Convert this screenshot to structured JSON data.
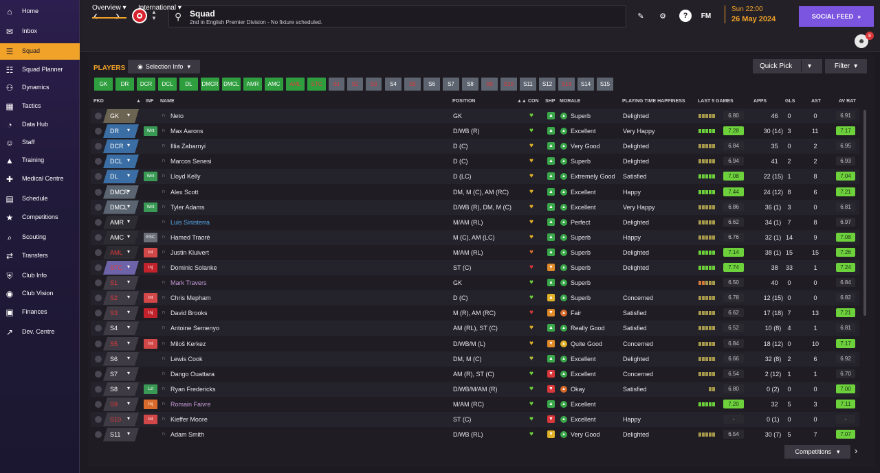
{
  "sidebar": {
    "items": [
      {
        "label": "Home",
        "icon": "home-icon"
      },
      {
        "label": "Inbox",
        "icon": "inbox-icon"
      },
      {
        "label": "Squad",
        "icon": "squad-icon",
        "active": true
      },
      {
        "label": "Squad Planner",
        "icon": "squad-planner-icon"
      },
      {
        "label": "Dynamics",
        "icon": "dynamics-icon"
      },
      {
        "label": "Tactics",
        "icon": "tactics-icon"
      },
      {
        "label": "Data Hub",
        "icon": "data-hub-icon"
      },
      {
        "label": "Staff",
        "icon": "staff-icon"
      },
      {
        "label": "Training",
        "icon": "training-icon"
      },
      {
        "label": "Medical Centre",
        "icon": "medical-icon"
      },
      {
        "label": "Schedule",
        "icon": "schedule-icon"
      },
      {
        "label": "Competitions",
        "icon": "trophy-icon"
      },
      {
        "label": "Scouting",
        "icon": "scouting-icon"
      },
      {
        "label": "Transfers",
        "icon": "transfers-icon"
      },
      {
        "label": "Club Info",
        "icon": "shield-icon"
      },
      {
        "label": "Club Vision",
        "icon": "vision-icon"
      },
      {
        "label": "Finances",
        "icon": "finances-icon"
      },
      {
        "label": "Dev. Centre",
        "icon": "dev-centre-icon"
      }
    ]
  },
  "header": {
    "title": "Squad",
    "subtitle": "2nd in English Premier Division - No fixture scheduled.",
    "time": "Sun 22:00",
    "date": "26 May 2024",
    "social_feed": "SOCIAL FEED",
    "fm_label": "FM",
    "avatar_count": "8"
  },
  "tabs": {
    "overview": "Overview",
    "international": "International"
  },
  "toolbar": {
    "players_label": "PLAYERS",
    "selection_info": "Selection Info",
    "quick_pick": "Quick Pick",
    "filter": "Filter"
  },
  "position_chips": [
    {
      "label": "GK",
      "style": "g"
    },
    {
      "label": "DR",
      "style": "g"
    },
    {
      "label": "DCR",
      "style": "g"
    },
    {
      "label": "DCL",
      "style": "g"
    },
    {
      "label": "DL",
      "style": "g"
    },
    {
      "label": "DMCR",
      "style": "g"
    },
    {
      "label": "DMCL",
      "style": "g"
    },
    {
      "label": "AMR",
      "style": "g"
    },
    {
      "label": "AMC",
      "style": "g"
    },
    {
      "label": "AML",
      "style": "ga"
    },
    {
      "label": "STC",
      "style": "ga"
    },
    {
      "label": "S1",
      "style": "ya"
    },
    {
      "label": "S2",
      "style": "ya"
    },
    {
      "label": "S3",
      "style": "ya"
    },
    {
      "label": "S4",
      "style": "y"
    },
    {
      "label": "S5",
      "style": "ya"
    },
    {
      "label": "S6",
      "style": "y"
    },
    {
      "label": "S7",
      "style": "y"
    },
    {
      "label": "S8",
      "style": "y"
    },
    {
      "label": "S9",
      "style": "ya"
    },
    {
      "label": "S10",
      "style": "ya"
    },
    {
      "label": "S11",
      "style": "y"
    },
    {
      "label": "S12",
      "style": "y"
    },
    {
      "label": "S13",
      "style": "ya"
    },
    {
      "label": "S14",
      "style": "y"
    },
    {
      "label": "S15",
      "style": "y"
    }
  ],
  "columns": {
    "pkd": "PKD",
    "inf": "INF",
    "name": "NAME",
    "position": "POSITION",
    "con": "CON",
    "shp": "SHP",
    "morale": "MORALE",
    "pth": "PLAYING TIME HAPPINESS",
    "last5": "LAST 5 GAMES",
    "apps": "APPS",
    "gls": "GLS",
    "ast": "AST",
    "avrat": "AV RAT"
  },
  "players": [
    {
      "slot": "GK",
      "slot_color": "#6b6452",
      "slot_red": false,
      "inf": "",
      "inf_type": "",
      "name": "Neto",
      "name_color": "#e8e6ec",
      "position": "GK",
      "con": "#6dd13c",
      "shp": "up",
      "morale": "Superb",
      "pth": "Delighted",
      "last5": [
        "#a89a4c",
        "#a89a4c",
        "#a89a4c",
        "#a89a4c",
        "#a89a4c"
      ],
      "l5": "6.80",
      "l5g": false,
      "apps": "46",
      "gls": "0",
      "ast": "0",
      "avrat": "6.91",
      "avg": false
    },
    {
      "slot": "DR",
      "slot_color": "#3b6ea4",
      "slot_red": false,
      "inf": "Wnt",
      "inf_type": "wnt",
      "name": "Max Aarons",
      "name_color": "#e8e6ec",
      "position": "D/WB (R)",
      "con": "#6dd13c",
      "shp": "up",
      "morale": "Excellent",
      "pth": "Very Happy",
      "last5": [
        "#6dd13c",
        "#6dd13c",
        "#6dd13c",
        "#6dd13c",
        "#6dd13c"
      ],
      "l5": "7.28",
      "l5g": true,
      "apps": "30 (14)",
      "gls": "3",
      "ast": "11",
      "avrat": "7.17",
      "avg": true
    },
    {
      "slot": "DCR",
      "slot_color": "#3b6ea4",
      "slot_red": false,
      "inf": "",
      "inf_type": "",
      "name": "Illia Zabarnyi",
      "name_color": "#e8e6ec",
      "position": "D (C)",
      "con": "#e0b128",
      "shp": "up",
      "morale": "Very Good",
      "pth": "Delighted",
      "last5": [
        "#a89a4c",
        "#a89a4c",
        "#a89a4c",
        "#a89a4c",
        "#a89a4c"
      ],
      "l5": "6.84",
      "l5g": false,
      "apps": "35",
      "gls": "0",
      "ast": "2",
      "avrat": "6.95",
      "avg": false
    },
    {
      "slot": "DCL",
      "slot_color": "#3b6ea4",
      "slot_red": false,
      "inf": "",
      "inf_type": "",
      "name": "Marcos Senesi",
      "name_color": "#e8e6ec",
      "position": "D (C)",
      "con": "#e0b128",
      "shp": "up",
      "morale": "Superb",
      "pth": "Delighted",
      "last5": [
        "#a89a4c",
        "#a89a4c",
        "#a89a4c",
        "#a89a4c",
        "#a89a4c"
      ],
      "l5": "6.94",
      "l5g": false,
      "apps": "41",
      "gls": "2",
      "ast": "2",
      "avrat": "6.93",
      "avg": false
    },
    {
      "slot": "DL",
      "slot_color": "#3b6ea4",
      "slot_red": false,
      "inf": "Wnt",
      "inf_type": "wnt",
      "name": "Lloyd Kelly",
      "name_color": "#e8e6ec",
      "position": "D (LC)",
      "con": "#e0b128",
      "shp": "up",
      "morale": "Extremely Good",
      "pth": "Satisfied",
      "last5": [
        "#6dd13c",
        "#6dd13c",
        "#6dd13c",
        "#6dd13c",
        "#6dd13c"
      ],
      "l5": "7.08",
      "l5g": true,
      "apps": "22 (15)",
      "gls": "1",
      "ast": "8",
      "avrat": "7.04",
      "avg": true
    },
    {
      "slot": "DMCR",
      "slot_color": "#5b6572",
      "slot_red": false,
      "inf": "",
      "inf_type": "",
      "name": "Alex Scott",
      "name_color": "#e8e6ec",
      "position": "DM, M (C), AM (RC)",
      "con": "#e0b128",
      "shp": "up",
      "morale": "Excellent",
      "pth": "Happy",
      "last5": [
        "#6dd13c",
        "#6dd13c",
        "#6dd13c",
        "#6dd13c",
        "#6dd13c"
      ],
      "l5": "7.44",
      "l5g": true,
      "apps": "24 (12)",
      "gls": "8",
      "ast": "6",
      "avrat": "7.21",
      "avg": true
    },
    {
      "slot": "DMCL",
      "slot_color": "#5b6572",
      "slot_red": false,
      "inf": "Wnt",
      "inf_type": "wnt",
      "name": "Tyler Adams",
      "name_color": "#e8e6ec",
      "position": "D/WB (R), DM, M (C)",
      "con": "#e0b128",
      "shp": "up",
      "morale": "Excellent",
      "pth": "Very Happy",
      "last5": [
        "#a89a4c",
        "#a89a4c",
        "#a89a4c",
        "#a89a4c",
        "#a89a4c"
      ],
      "l5": "6.86",
      "l5g": false,
      "apps": "36 (1)",
      "gls": "3",
      "ast": "0",
      "avrat": "6.81",
      "avg": false
    },
    {
      "slot": "AMR",
      "slot_color": "#2e2c33",
      "slot_red": false,
      "inf": "",
      "inf_type": "",
      "name": "Luis Sinisterra",
      "name_color": "#5aa6e8",
      "position": "M/AM (RL)",
      "con": "#e0b128",
      "shp": "upg",
      "morale": "Perfect",
      "pth": "Delighted",
      "last5": [
        "#a89a4c",
        "#a89a4c",
        "#a89a4c",
        "#a89a4c",
        "#a89a4c"
      ],
      "l5": "6.62",
      "l5g": false,
      "apps": "34 (1)",
      "gls": "7",
      "ast": "8",
      "avrat": "6.97",
      "avg": false
    },
    {
      "slot": "AMC",
      "slot_color": "#2e2c33",
      "slot_red": false,
      "inf": "ESC",
      "inf_type": "esc",
      "name": "Hamed Traorè",
      "name_color": "#e8e6ec",
      "position": "M (C), AM (LC)",
      "con": "#e0b128",
      "shp": "up",
      "morale": "Superb",
      "pth": "Happy",
      "last5": [
        "#a89a4c",
        "#a89a4c",
        "#a89a4c",
        "#a89a4c",
        "#a89a4c"
      ],
      "l5": "6.76",
      "l5g": false,
      "apps": "32 (1)",
      "gls": "14",
      "ast": "9",
      "avrat": "7.08",
      "avg": true
    },
    {
      "slot": "AML",
      "slot_color": "#2e2c33",
      "slot_red": true,
      "inf": "Int",
      "inf_type": "int",
      "name": "Justin Kluivert",
      "name_color": "#e8e6ec",
      "position": "M/AM (RL)",
      "con": "#d86b2b",
      "shp": "up",
      "morale": "Superb",
      "pth": "Delighted",
      "last5": [
        "#6dd13c",
        "#6dd13c",
        "#6dd13c",
        "#6dd13c",
        "#6dd13c"
      ],
      "l5": "7.14",
      "l5g": true,
      "apps": "38 (1)",
      "gls": "15",
      "ast": "15",
      "avrat": "7.26",
      "avg": true
    },
    {
      "slot": "STC",
      "slot_color": "#6d63a8",
      "slot_red": true,
      "inf": "Inj",
      "inf_type": "inj",
      "name": "Dominic Solanke",
      "name_color": "#e8e6ec",
      "position": "ST (C)",
      "con": "#d9373b",
      "shp": "down",
      "morale": "Superb",
      "pth": "Delighted",
      "last5": [
        "#6dd13c",
        "#6dd13c",
        "#6dd13c",
        "#6dd13c",
        "#6dd13c"
      ],
      "l5": "7.74",
      "l5g": true,
      "apps": "38",
      "gls": "33",
      "ast": "1",
      "avrat": "7.24",
      "avg": true
    },
    {
      "slot": "S1",
      "slot_color": "#3e3b44",
      "slot_red": true,
      "inf": "",
      "inf_type": "",
      "name": "Mark Travers",
      "name_color": "#c79ad8",
      "position": "GK",
      "con": "#6dd13c",
      "shp": "up",
      "morale": "Superb",
      "pth": "",
      "last5": [
        "#d17a3c",
        "#d17a3c",
        "#a89a4c",
        "#a89a4c",
        "#a89a4c"
      ],
      "l5": "6.50",
      "l5g": false,
      "apps": "40",
      "gls": "0",
      "ast": "0",
      "avrat": "6.84",
      "avg": false
    },
    {
      "slot": "S2",
      "slot_color": "#3e3b44",
      "slot_red": true,
      "inf": "Int",
      "inf_type": "int",
      "name": "Chris Mepham",
      "name_color": "#e8e6ec",
      "position": "D (C)",
      "con": "#6dd13c",
      "shp": "upy",
      "morale": "Superb",
      "pth": "Concerned",
      "last5": [
        "#a89a4c",
        "#a89a4c",
        "#a89a4c",
        "#a89a4c",
        "#a89a4c"
      ],
      "l5": "6.78",
      "l5g": false,
      "apps": "12 (15)",
      "gls": "0",
      "ast": "0",
      "avrat": "6.82",
      "avg": false
    },
    {
      "slot": "S3",
      "slot_color": "#3e3b44",
      "slot_red": true,
      "inf": "Inj",
      "inf_type": "inj",
      "name": "David Brooks",
      "name_color": "#e8e6ec",
      "position": "M (R), AM (RC)",
      "con": "#d9373b",
      "shp": "down",
      "morale": "Fair",
      "pth": "Satisfied",
      "last5": [
        "#a89a4c",
        "#a89a4c",
        "#a89a4c",
        "#a89a4c",
        "#a89a4c"
      ],
      "l5": "6.62",
      "l5g": false,
      "apps": "17 (18)",
      "gls": "7",
      "ast": "13",
      "avrat": "7.21",
      "avg": true
    },
    {
      "slot": "S4",
      "slot_color": "#3e3b44",
      "slot_red": false,
      "inf": "",
      "inf_type": "",
      "name": "Antoine Semenyo",
      "name_color": "#e8e6ec",
      "position": "AM (RL), ST (C)",
      "con": "#e0b128",
      "shp": "up",
      "morale": "Really Good",
      "pth": "Satisfied",
      "last5": [
        "#a89a4c",
        "#a89a4c",
        "#a89a4c",
        "#a89a4c",
        "#a89a4c"
      ],
      "l5": "6.52",
      "l5g": false,
      "apps": "10 (8)",
      "gls": "4",
      "ast": "1",
      "avrat": "6.81",
      "avg": false
    },
    {
      "slot": "S5",
      "slot_color": "#3e3b44",
      "slot_red": true,
      "inf": "Int",
      "inf_type": "int",
      "name": "Miloš Kerkez",
      "name_color": "#e8e6ec",
      "position": "D/WB/M (L)",
      "con": "#e0b128",
      "shp": "down",
      "morale": "Quite Good",
      "pth": "Concerned",
      "last5": [
        "#a89a4c",
        "#a89a4c",
        "#a89a4c",
        "#a89a4c",
        "#a89a4c"
      ],
      "l5": "6.84",
      "l5g": false,
      "apps": "18 (12)",
      "gls": "0",
      "ast": "10",
      "avrat": "7.17",
      "avg": true
    },
    {
      "slot": "S6",
      "slot_color": "#3e3b44",
      "slot_red": false,
      "inf": "",
      "inf_type": "",
      "name": "Lewis Cook",
      "name_color": "#e8e6ec",
      "position": "DM, M (C)",
      "con": "#b8c23a",
      "shp": "up",
      "morale": "Excellent",
      "pth": "Delighted",
      "last5": [
        "#a89a4c",
        "#a89a4c",
        "#a89a4c",
        "#a89a4c",
        "#a89a4c"
      ],
      "l5": "6.66",
      "l5g": false,
      "apps": "32 (8)",
      "gls": "2",
      "ast": "6",
      "avrat": "6.92",
      "avg": false
    },
    {
      "slot": "S7",
      "slot_color": "#3e3b44",
      "slot_red": false,
      "inf": "",
      "inf_type": "",
      "name": "Dango Ouattara",
      "name_color": "#e8e6ec",
      "position": "AM (R), ST (C)",
      "con": "#6dd13c",
      "shp": "downr",
      "morale": "Excellent",
      "pth": "Concerned",
      "last5": [
        "#a89a4c",
        "#a89a4c",
        "#a89a4c",
        "#a89a4c",
        "#a89a4c"
      ],
      "l5": "6.54",
      "l5g": false,
      "apps": "2 (12)",
      "gls": "1",
      "ast": "1",
      "avrat": "6.70",
      "avg": false
    },
    {
      "slot": "S8",
      "slot_color": "#3e3b44",
      "slot_red": false,
      "inf": "Lst",
      "inf_type": "lst",
      "name": "Ryan Fredericks",
      "name_color": "#e8e6ec",
      "position": "D/WB/M/AM (R)",
      "con": "#6dd13c",
      "shp": "downr",
      "morale": "Okay",
      "pth": "Satisfied",
      "last5": [
        "#a89a4c",
        "#a89a4c"
      ],
      "l5": "6.80",
      "l5g": false,
      "apps": "0 (2)",
      "gls": "0",
      "ast": "0",
      "avrat": "7.00",
      "avg": true
    },
    {
      "slot": "S9",
      "slot_color": "#3e3b44",
      "slot_red": true,
      "inf": "Inj",
      "inf_type": "injo",
      "name": "Romain Faivre",
      "name_color": "#c79ad8",
      "position": "M/AM (RC)",
      "con": "#6dd13c",
      "shp": "up",
      "morale": "Excellent",
      "pth": "",
      "last5": [
        "#6dd13c",
        "#6dd13c",
        "#6dd13c",
        "#6dd13c",
        "#6dd13c"
      ],
      "l5": "7.20",
      "l5g": true,
      "apps": "32",
      "gls": "5",
      "ast": "3",
      "avrat": "7.11",
      "avg": true
    },
    {
      "slot": "S10",
      "slot_color": "#3e3b44",
      "slot_red": true,
      "inf": "Int",
      "inf_type": "int",
      "name": "Kieffer Moore",
      "name_color": "#e8e6ec",
      "position": "ST (C)",
      "con": "#6dd13c",
      "shp": "downr",
      "morale": "Excellent",
      "pth": "Happy",
      "last5": [],
      "l5": "-",
      "l5g": false,
      "apps": "0 (1)",
      "gls": "0",
      "ast": "0",
      "avrat": "-",
      "avg": false
    },
    {
      "slot": "S11",
      "slot_color": "#3e3b44",
      "slot_red": false,
      "inf": "",
      "inf_type": "",
      "name": "Adam Smith",
      "name_color": "#e8e6ec",
      "position": "D/WB (RL)",
      "con": "#6dd13c",
      "shp": "downy",
      "morale": "Very Good",
      "pth": "Delighted",
      "last5": [
        "#a89a4c",
        "#a89a4c",
        "#a89a4c",
        "#a89a4c",
        "#a89a4c"
      ],
      "l5": "6.54",
      "l5g": false,
      "apps": "30 (7)",
      "gls": "5",
      "ast": "7",
      "avrat": "7.07",
      "avg": true
    }
  ],
  "footer": {
    "competitions": "Competitions"
  }
}
